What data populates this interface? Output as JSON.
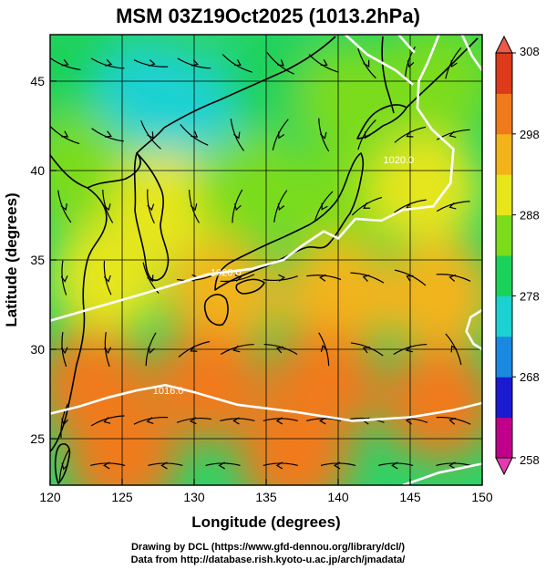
{
  "chart_data": {
    "type": "heatmap",
    "title": "MSM 03Z19Oct2025 (1013.2hPa)",
    "xlabel": "Longitude (degrees)",
    "ylabel": "Latitude  (degrees)",
    "xlim": [
      120,
      150
    ],
    "ylim": [
      22.4,
      47.6
    ],
    "x_ticks": [
      "120",
      "125",
      "130",
      "135",
      "140",
      "145",
      "150"
    ],
    "y_ticks": [
      "25",
      "30",
      "35",
      "40",
      "45"
    ],
    "x_tick_values": [
      120,
      125,
      130,
      135,
      140,
      145,
      150
    ],
    "y_tick_values": [
      25,
      30,
      35,
      40,
      45
    ],
    "colorbar": {
      "min": 258,
      "max": 308,
      "ticks": [
        "308",
        "298",
        "288",
        "278",
        "268",
        "258"
      ],
      "tick_values": [
        308,
        298,
        288,
        278,
        268,
        258
      ],
      "colors": [
        "#c0008a",
        "#1a1ad0",
        "#1a8ae0",
        "#1ad2d2",
        "#1ad25a",
        "#7adc1a",
        "#e6e61a",
        "#f2b41a",
        "#f07a1a",
        "#dc3a1a"
      ]
    },
    "field_samples": [
      {
        "lon": 121,
        "lat": 46,
        "value": 281
      },
      {
        "lon": 127,
        "lat": 44,
        "value": 276
      },
      {
        "lon": 131,
        "lat": 43,
        "value": 276
      },
      {
        "lon": 136,
        "lat": 45,
        "value": 279
      },
      {
        "lon": 141,
        "lat": 44,
        "value": 283
      },
      {
        "lon": 147,
        "lat": 45,
        "value": 283
      },
      {
        "lon": 122,
        "lat": 40,
        "value": 285
      },
      {
        "lon": 128,
        "lat": 38,
        "value": 289
      },
      {
        "lon": 134,
        "lat": 39,
        "value": 287
      },
      {
        "lon": 140,
        "lat": 38,
        "value": 287
      },
      {
        "lon": 146,
        "lat": 39,
        "value": 289
      },
      {
        "lon": 124,
        "lat": 34,
        "value": 291
      },
      {
        "lon": 132,
        "lat": 33,
        "value": 294
      },
      {
        "lon": 140,
        "lat": 33,
        "value": 295
      },
      {
        "lon": 147,
        "lat": 33,
        "value": 296
      },
      {
        "lon": 123,
        "lat": 28,
        "value": 299
      },
      {
        "lon": 131,
        "lat": 28,
        "value": 299
      },
      {
        "lon": 139,
        "lat": 28,
        "value": 299
      },
      {
        "lon": 147,
        "lat": 27,
        "value": 298
      },
      {
        "lon": 125,
        "lat": 24,
        "value": 300
      },
      {
        "lon": 137,
        "lat": 24,
        "value": 300
      }
    ],
    "contours": [
      {
        "label": "1020.0",
        "points": [
          [
            147.0,
            47.6
          ],
          [
            146.2,
            46.0
          ],
          [
            145.6,
            45.0
          ],
          [
            145.5,
            43.5
          ],
          [
            146.5,
            42.3
          ],
          [
            148.0,
            41.2
          ],
          [
            147.8,
            39.3
          ],
          [
            146.6,
            38.0
          ],
          [
            144.5,
            37.8
          ],
          [
            143.0,
            37.2
          ],
          [
            141.2,
            37.3
          ],
          [
            140.0,
            36.2
          ],
          [
            139.0,
            36.6
          ],
          [
            137.5,
            35.8
          ],
          [
            136.2,
            35.0
          ],
          [
            134.0,
            34.5
          ],
          [
            131.0,
            34.2
          ],
          [
            128.5,
            33.6
          ],
          [
            126.0,
            33.0
          ],
          [
            123.0,
            32.3
          ],
          [
            120.0,
            31.6
          ]
        ]
      },
      {
        "label": "1016.0",
        "points": [
          [
            120.0,
            26.4
          ],
          [
            122.0,
            26.8
          ],
          [
            124.0,
            27.3
          ],
          [
            126.0,
            27.7
          ],
          [
            128.0,
            28.0
          ],
          [
            130.0,
            27.6
          ],
          [
            133.0,
            26.9
          ],
          [
            137.0,
            26.5
          ],
          [
            141.0,
            26.0
          ],
          [
            145.0,
            26.2
          ],
          [
            148.0,
            26.6
          ],
          [
            150.0,
            27.0
          ]
        ]
      },
      {
        "label": "",
        "points": [
          [
            140.5,
            47.6
          ],
          [
            142.0,
            46.5
          ],
          [
            144.0,
            45.6
          ],
          [
            145.2,
            44.8
          ]
        ]
      },
      {
        "label": "",
        "points": [
          [
            148.6,
            47.6
          ],
          [
            149.3,
            46.4
          ],
          [
            150.0,
            45.6
          ]
        ]
      },
      {
        "label": "",
        "points": [
          [
            144.2,
            47.6
          ],
          [
            145.3,
            46.6
          ]
        ]
      },
      {
        "label": "",
        "points": [
          [
            150.0,
            32.2
          ],
          [
            149.2,
            31.8
          ],
          [
            148.9,
            31.0
          ],
          [
            149.4,
            30.3
          ],
          [
            150.0,
            30.0
          ]
        ]
      },
      {
        "label": "",
        "points": [
          [
            144.5,
            22.4
          ],
          [
            147.0,
            23.1
          ],
          [
            150.0,
            23.6
          ]
        ]
      }
    ],
    "contour_labels": [
      {
        "text": "1020.0",
        "lon": 144.2,
        "lat": 40.6
      },
      {
        "text": "1020.0",
        "lon": 132.2,
        "lat": 34.3
      },
      {
        "text": "1016.0",
        "lon": 128.2,
        "lat": 27.7
      }
    ],
    "streamline_dirs": [
      {
        "lon": 121,
        "lat": 46,
        "u": 1,
        "v": -0.4
      },
      {
        "lon": 124,
        "lat": 46,
        "u": 1,
        "v": -0.3
      },
      {
        "lon": 127,
        "lat": 46,
        "u": 1,
        "v": -0.2
      },
      {
        "lon": 130,
        "lat": 46,
        "u": 1,
        "v": -0.3
      },
      {
        "lon": 133,
        "lat": 46,
        "u": 1,
        "v": -0.6
      },
      {
        "lon": 136,
        "lat": 46,
        "u": 1,
        "v": -0.8
      },
      {
        "lon": 139,
        "lat": 46,
        "u": 1,
        "v": -0.6
      },
      {
        "lon": 142,
        "lat": 46,
        "u": 0.6,
        "v": -1
      },
      {
        "lon": 145,
        "lat": 46,
        "u": -0.3,
        "v": -1
      },
      {
        "lon": 148,
        "lat": 46,
        "u": -0.5,
        "v": -1
      },
      {
        "lon": 121,
        "lat": 42,
        "u": 1,
        "v": -0.6
      },
      {
        "lon": 124,
        "lat": 42,
        "u": 1,
        "v": -0.4
      },
      {
        "lon": 127,
        "lat": 42,
        "u": 0.7,
        "v": -1
      },
      {
        "lon": 130,
        "lat": 42,
        "u": 0.8,
        "v": -0.6
      },
      {
        "lon": 133,
        "lat": 42,
        "u": 0.4,
        "v": -1
      },
      {
        "lon": 136,
        "lat": 42,
        "u": -0.5,
        "v": -1
      },
      {
        "lon": 139,
        "lat": 42,
        "u": 0.3,
        "v": -1
      },
      {
        "lon": 142,
        "lat": 42,
        "u": -0.6,
        "v": -1
      },
      {
        "lon": 145,
        "lat": 42,
        "u": -1,
        "v": -0.5
      },
      {
        "lon": 148,
        "lat": 42,
        "u": -1,
        "v": -0.3
      },
      {
        "lon": 121,
        "lat": 38,
        "u": 0.4,
        "v": -1
      },
      {
        "lon": 124,
        "lat": 38,
        "u": 0.3,
        "v": -1
      },
      {
        "lon": 127,
        "lat": 38,
        "u": 0.2,
        "v": -1
      },
      {
        "lon": 130,
        "lat": 38,
        "u": 0.3,
        "v": -1
      },
      {
        "lon": 133,
        "lat": 38,
        "u": -0.3,
        "v": -1
      },
      {
        "lon": 136,
        "lat": 38,
        "u": -0.4,
        "v": -1
      },
      {
        "lon": 139,
        "lat": 38,
        "u": -0.6,
        "v": -1
      },
      {
        "lon": 142,
        "lat": 38,
        "u": -1,
        "v": -0.6
      },
      {
        "lon": 145,
        "lat": 38,
        "u": -1,
        "v": -0.4
      },
      {
        "lon": 148,
        "lat": 38,
        "u": -1,
        "v": -0.3
      },
      {
        "lon": 121,
        "lat": 34,
        "u": 0.1,
        "v": -1
      },
      {
        "lon": 124,
        "lat": 34,
        "u": 0.2,
        "v": -1
      },
      {
        "lon": 127,
        "lat": 34,
        "u": 0.5,
        "v": -1
      },
      {
        "lon": 130,
        "lat": 34,
        "u": 1,
        "v": 0.1
      },
      {
        "lon": 133,
        "lat": 34,
        "u": 1,
        "v": 0.2
      },
      {
        "lon": 136,
        "lat": 34,
        "u": 1,
        "v": 0.1
      },
      {
        "lon": 139,
        "lat": 34,
        "u": -1,
        "v": 0.1
      },
      {
        "lon": 142,
        "lat": 34,
        "u": -1,
        "v": 0.3
      },
      {
        "lon": 145,
        "lat": 34,
        "u": -1,
        "v": 0.5
      },
      {
        "lon": 148,
        "lat": 34,
        "u": -1,
        "v": 0.2
      },
      {
        "lon": 121,
        "lat": 30,
        "u": 0.1,
        "v": -1
      },
      {
        "lon": 124,
        "lat": 30,
        "u": 0.1,
        "v": -1
      },
      {
        "lon": 127,
        "lat": 30,
        "u": -0.3,
        "v": -1
      },
      {
        "lon": 130,
        "lat": 30,
        "u": -1,
        "v": -0.5
      },
      {
        "lon": 133,
        "lat": 30,
        "u": -1,
        "v": -0.3
      },
      {
        "lon": 136,
        "lat": 30,
        "u": -1,
        "v": 0.3
      },
      {
        "lon": 139,
        "lat": 30,
        "u": -0.3,
        "v": 1
      },
      {
        "lon": 142,
        "lat": 30,
        "u": -1,
        "v": 0.4
      },
      {
        "lon": 145,
        "lat": 30,
        "u": -1,
        "v": -0.3
      },
      {
        "lon": 148,
        "lat": 30,
        "u": -0.5,
        "v": 1
      },
      {
        "lon": 121,
        "lat": 26,
        "u": -0.2,
        "v": -1
      },
      {
        "lon": 124,
        "lat": 26,
        "u": -1,
        "v": -0.3
      },
      {
        "lon": 127,
        "lat": 26,
        "u": -1,
        "v": -0.2
      },
      {
        "lon": 130,
        "lat": 26,
        "u": -1,
        "v": -0.1
      },
      {
        "lon": 133,
        "lat": 26,
        "u": -1,
        "v": 0
      },
      {
        "lon": 136,
        "lat": 26,
        "u": -1,
        "v": 0
      },
      {
        "lon": 139,
        "lat": 26,
        "u": -1,
        "v": 0
      },
      {
        "lon": 142,
        "lat": 26,
        "u": -1,
        "v": 0.1
      },
      {
        "lon": 145,
        "lat": 26,
        "u": -1,
        "v": 0.1
      },
      {
        "lon": 148,
        "lat": 26,
        "u": -1,
        "v": 0.2
      },
      {
        "lon": 121,
        "lat": 23.5,
        "u": -0.3,
        "v": -1
      },
      {
        "lon": 124,
        "lat": 23.5,
        "u": -1,
        "v": 0
      },
      {
        "lon": 128,
        "lat": 23.5,
        "u": -1,
        "v": 0
      },
      {
        "lon": 132,
        "lat": 23.5,
        "u": -1,
        "v": 0
      },
      {
        "lon": 136,
        "lat": 23.5,
        "u": -1,
        "v": 0
      },
      {
        "lon": 140,
        "lat": 23.5,
        "u": -1,
        "v": 0
      },
      {
        "lon": 144,
        "lat": 23.5,
        "u": -1,
        "v": 0
      },
      {
        "lon": 148,
        "lat": 23.5,
        "u": -1,
        "v": 0
      }
    ]
  },
  "credits": {
    "line1": "Drawing by DCL (https://www.gfd-dennou.org/library/dcl/)",
    "line2": "Data from http://database.rish.kyoto-u.ac.jp/arch/jmadata/"
  }
}
